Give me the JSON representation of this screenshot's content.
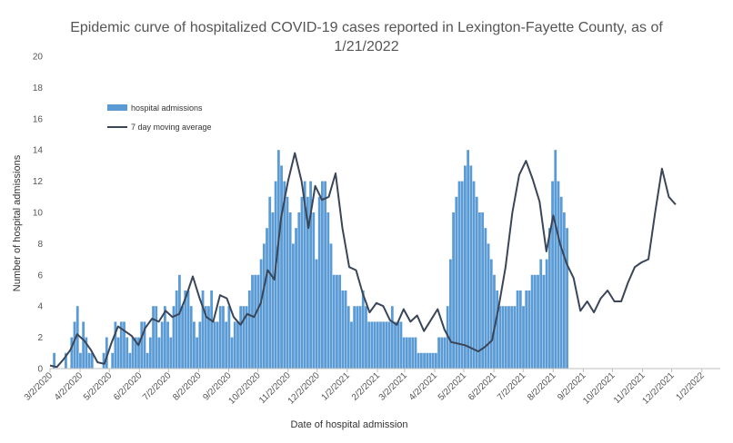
{
  "chart_data": {
    "type": "bar",
    "title_line1": "Epidemic curve of hospitalized COVID-19 cases reported in Lexington-Fayette County, as of",
    "title_line2": "1/21/2022",
    "xlabel": "Date of hospital admission",
    "ylabel": "Number of hospital admissions",
    "ylim": [
      0,
      20
    ],
    "yticks": [
      0,
      2,
      4,
      6,
      8,
      10,
      12,
      14,
      16,
      18,
      20
    ],
    "xlim": [
      "2020-03-02",
      "2022-01-21"
    ],
    "xticks": [
      "3/2/2020",
      "4/2/2020",
      "5/2/2020",
      "6/2/2020",
      "7/2/2020",
      "8/2/2020",
      "9/2/2020",
      "10/2/2020",
      "11/2/2020",
      "12/2/2020",
      "1/2/2021",
      "2/2/2021",
      "3/2/2021",
      "4/2/2021",
      "5/2/2021",
      "6/2/2021",
      "7/2/2021",
      "8/2/2021",
      "9/2/2021",
      "10/2/2021",
      "11/2/2021",
      "12/2/2021",
      "1/2/2022"
    ],
    "grid": false,
    "legend_placement": "top-left",
    "series": [
      {
        "name": "hospital admissions",
        "kind": "bar",
        "color": "#5b9bd5",
        "x_start": "2020-03-02",
        "interval_days": 3,
        "values": [
          0,
          1,
          0,
          0,
          0,
          1,
          0,
          2,
          3,
          4,
          1,
          3,
          2,
          1,
          1,
          0,
          0,
          0,
          1,
          2,
          0,
          1,
          3,
          2,
          3,
          3,
          2,
          1,
          2,
          2,
          2,
          3,
          3,
          1,
          2,
          4,
          4,
          2,
          3,
          4,
          3,
          2,
          4,
          5,
          6,
          4,
          5,
          5,
          4,
          3,
          2,
          3,
          5,
          4,
          4,
          5,
          3,
          3,
          4,
          4,
          3,
          4,
          2,
          3,
          3,
          4,
          4,
          4,
          5,
          6,
          6,
          6,
          7,
          8,
          9,
          11,
          10,
          12,
          14,
          13,
          12,
          11,
          10,
          8,
          9,
          10,
          11,
          12,
          11,
          12,
          10,
          7,
          11,
          12,
          12,
          10,
          8,
          6,
          6,
          6,
          5,
          5,
          4,
          3,
          4,
          4,
          4,
          5,
          4,
          3,
          3,
          3,
          3,
          3,
          3,
          3,
          3,
          4,
          3,
          3,
          3,
          2,
          2,
          2,
          2,
          2,
          1,
          1,
          1,
          1,
          1,
          1,
          1,
          2,
          2,
          2,
          4,
          7,
          10,
          11,
          12,
          12,
          13,
          14,
          13,
          12,
          11,
          10,
          10,
          9,
          8,
          7,
          6,
          5,
          4,
          4,
          4,
          4,
          4,
          4,
          5,
          5,
          4,
          5,
          5,
          6,
          6,
          6,
          7,
          6,
          7,
          9,
          12,
          14,
          12,
          11,
          10,
          9
        ]
      },
      {
        "name": "7 day moving average",
        "kind": "line",
        "color": "#3a4658",
        "x_start": "2020-03-02",
        "interval_days": 7,
        "values": [
          0.2,
          0.1,
          0.6,
          1.2,
          2.2,
          1.8,
          1.2,
          0.4,
          0.3,
          1.6,
          2.7,
          2.4,
          2.1,
          1.5,
          2.6,
          3.2,
          3.0,
          3.7,
          3.3,
          3.5,
          4.6,
          5.9,
          4.5,
          3.3,
          3.0,
          4.7,
          4.5,
          3.3,
          2.8,
          3.5,
          3.3,
          4.2,
          6.3,
          5.7,
          9.7,
          12.0,
          13.8,
          12.0,
          9.0,
          11.7,
          10.8,
          11.0,
          12.5,
          9.0,
          6.5,
          6.3,
          4.8,
          3.6,
          4.2,
          4.0,
          3.1,
          2.8,
          3.8,
          3.0,
          3.4,
          2.4,
          3.1,
          3.8,
          2.5,
          1.7,
          1.6,
          1.5,
          1.3,
          1.1,
          1.4,
          1.8,
          4.0,
          6.5,
          10.0,
          12.4,
          13.3,
          12.1,
          10.7,
          7.5,
          9.8,
          8.0,
          6.7,
          5.8,
          3.7,
          4.3,
          3.6,
          4.5,
          5.0,
          4.3,
          4.3,
          5.5,
          6.5,
          6.8,
          7.0,
          10.0,
          12.8,
          11.0,
          10.5
        ]
      }
    ]
  }
}
